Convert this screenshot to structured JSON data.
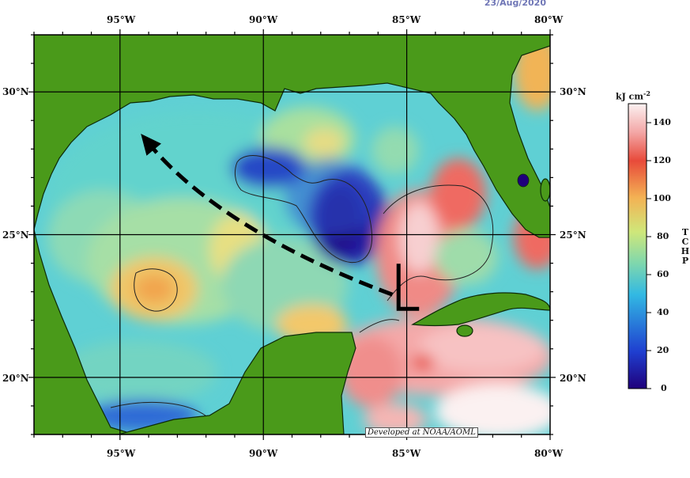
{
  "header": {
    "date": "23/Aug/2020"
  },
  "map": {
    "lon_labels": [
      "95°W",
      "90°W",
      "85°W",
      "80°W"
    ],
    "lat_labels": [
      "30°N",
      "25°N",
      "20°N"
    ],
    "credit": "Developed at NOAA/AOML"
  },
  "colorbar": {
    "unit_text": "kJ cm",
    "unit_sup": "-2",
    "axis_label": "TCHP",
    "ticks": [
      "140",
      "120",
      "100",
      "80",
      "60",
      "40",
      "20",
      "0"
    ],
    "colors": [
      "#1f007b",
      "#1f3fd0",
      "#32b9e3",
      "#7fd7ad",
      "#cfe77a",
      "#f3b254",
      "#e84a3a",
      "#f3a7a6",
      "#fbf1f1"
    ]
  },
  "chart_data": {
    "type": "heatmap",
    "title": "",
    "xlabel": "",
    "ylabel": "",
    "xlim_lon": [
      -98,
      -80
    ],
    "ylim_lat": [
      18,
      32
    ],
    "grid": true,
    "value_range": [
      0,
      150
    ],
    "ticks": [
      0,
      20,
      40,
      60,
      80,
      100,
      120,
      140
    ],
    "storm_track": {
      "style": "dashed arrow",
      "points_lon_lat": [
        [
          -85.5,
          22.9
        ],
        [
          -89.0,
          24.2
        ],
        [
          -92.2,
          26.0
        ],
        [
          -94.0,
          28.2
        ]
      ]
    },
    "storm_symbol_lon_lat": [
      -84.9,
      22.4
    ]
  }
}
